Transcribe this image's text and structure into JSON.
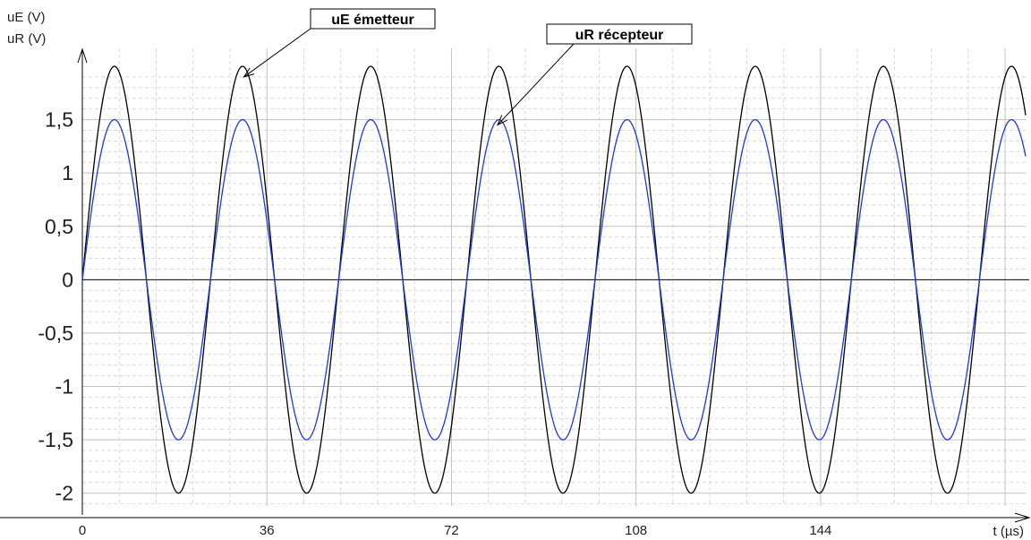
{
  "chart_data": {
    "type": "line",
    "ylabel_lines": [
      "uE (V)",
      "uR (V)"
    ],
    "xlabel": "t (µs)",
    "xlim": [
      0,
      184
    ],
    "ylim": [
      -2.12,
      2.0
    ],
    "x_ticks": [
      0,
      36,
      72,
      108,
      144
    ],
    "x_tick_labels": [
      "0",
      "36",
      "72",
      "108",
      "144"
    ],
    "y_ticks": [
      1.5,
      1,
      0.5,
      0,
      -0.5,
      -1,
      -1.5,
      -2
    ],
    "y_tick_labels": [
      "1,5",
      "1",
      "0,5",
      "0",
      "-0,5",
      "-1",
      "-1,5",
      "-2"
    ],
    "grid": true,
    "series": [
      {
        "name": "uE émetteur",
        "amplitude": 2.0,
        "period": 25,
        "phase": 0,
        "color": "#000000"
      },
      {
        "name": "uR récepteur",
        "amplitude": 1.5,
        "period": 25,
        "phase": 0,
        "color": "#1f3ad6"
      }
    ],
    "annotations": [
      {
        "text": "uE émetteur",
        "target_series": "uE émetteur",
        "x": 31.5,
        "y": 1.9
      },
      {
        "text": "uR récepteur",
        "target_series": "uR récepteur",
        "x": 81,
        "y": 1.45
      }
    ]
  }
}
